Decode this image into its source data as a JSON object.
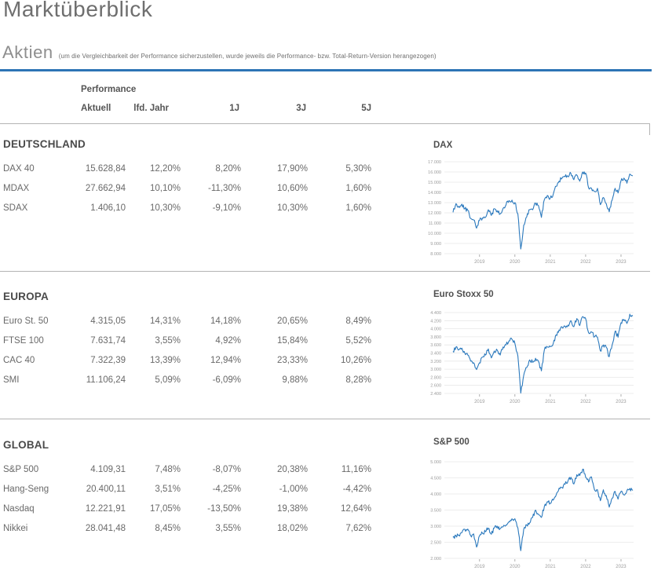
{
  "page": {
    "title": "Marktüberblick"
  },
  "section": {
    "title": "Aktien",
    "note": "(um die Vergleichbarkeit der Performance sicherzustellen, wurde jeweils die Performance- bzw. Total-Return-Version herangezogen)"
  },
  "table": {
    "group_header": "Performance",
    "columns": [
      "Aktuell",
      "lfd. Jahr",
      "1J",
      "3J",
      "5J"
    ],
    "groups": [
      {
        "name": "DEUTSCHLAND",
        "rows": [
          {
            "label": "DAX 40",
            "values": [
              "15.628,84",
              "12,20%",
              "8,20%",
              "17,90%",
              "5,30%"
            ]
          },
          {
            "label": "MDAX",
            "values": [
              "27.662,94",
              "10,10%",
              "-11,30%",
              "10,60%",
              "1,60%"
            ]
          },
          {
            "label": "SDAX",
            "values": [
              "1.406,10",
              "10,30%",
              "-9,10%",
              "10,30%",
              "1,60%"
            ]
          }
        ]
      },
      {
        "name": "EUROPA",
        "rows": [
          {
            "label": "Euro St. 50",
            "values": [
              "4.315,05",
              "14,31%",
              "14,18%",
              "20,65%",
              "8,49%"
            ]
          },
          {
            "label": "FTSE 100",
            "values": [
              "7.631,74",
              "3,55%",
              "4,92%",
              "15,84%",
              "5,52%"
            ]
          },
          {
            "label": "CAC 40",
            "values": [
              "7.322,39",
              "13,39%",
              "12,94%",
              "23,33%",
              "10,26%"
            ]
          },
          {
            "label": "SMI",
            "values": [
              "11.106,24",
              "5,09%",
              "-6,09%",
              "9,88%",
              "8,28%"
            ]
          }
        ]
      },
      {
        "name": "GLOBAL",
        "rows": [
          {
            "label": "S&P 500",
            "values": [
              "4.109,31",
              "7,48%",
              "-8,07%",
              "20,38%",
              "11,16%"
            ]
          },
          {
            "label": "Hang-Seng",
            "values": [
              "20.400,11",
              "3,51%",
              "-4,25%",
              "-1,00%",
              "-4,42%"
            ]
          },
          {
            "label": "Nasdaq",
            "values": [
              "12.221,91",
              "17,05%",
              "-13,50%",
              "19,38%",
              "12,64%"
            ]
          },
          {
            "label": "Nikkei",
            "values": [
              "28.041,48",
              "8,45%",
              "3,55%",
              "18,02%",
              "7,62%"
            ]
          }
        ]
      }
    ]
  },
  "colors": {
    "accent_blue": "#2d74b5",
    "chart_line": "#2b79bd",
    "grid_line": "#e7e7e7",
    "axis_label": "#9b9b9b",
    "rule_gray": "#b3b3b3",
    "text_dark": "#4a4a4a",
    "text_medium": "#696969",
    "text_light": "#8e8e8e"
  },
  "chart_data": [
    {
      "type": "line",
      "title": "DAX",
      "x_start": "2018-04",
      "x_end": "2023-05",
      "x_ticks": [
        "2019",
        "2020",
        "2021",
        "2022",
        "2023"
      ],
      "y_min": 8000,
      "y_max": 17000,
      "y_step": 1000,
      "y_tick_labels": [
        "8.000",
        "9.000",
        "10.000",
        "11.000",
        "12.000",
        "13.000",
        "14.000",
        "15.000",
        "16.000",
        "17.000"
      ],
      "grid": true,
      "legend": "none",
      "series": [
        {
          "name": "DAX",
          "values": [
            12050,
            12900,
            12650,
            12850,
            12400,
            12250,
            11450,
            11300,
            10500,
            11250,
            11500,
            11550,
            12300,
            11750,
            12400,
            12200,
            11900,
            12450,
            12800,
            13200,
            13250,
            13000,
            11900,
            8450,
            10800,
            11600,
            12300,
            12300,
            12950,
            12700,
            11550,
            13300,
            13700,
            13450,
            13800,
            14600,
            15100,
            15400,
            15550,
            15550,
            15850,
            15250,
            15700,
            15100,
            16000,
            15900,
            14450,
            14400,
            14100,
            14400,
            12800,
            13500,
            12900,
            12100,
            13250,
            14400,
            13950,
            15150,
            15400,
            14900,
            15800,
            15630
          ]
        }
      ]
    },
    {
      "type": "line",
      "title": "Euro Stoxx 50",
      "x_start": "2018-04",
      "x_end": "2023-05",
      "x_ticks": [
        "2019",
        "2020",
        "2021",
        "2022",
        "2023"
      ],
      "y_min": 2400,
      "y_max": 4400,
      "y_step": 200,
      "y_tick_labels": [
        "2.400",
        "2.600",
        "2.800",
        "3.000",
        "3.200",
        "3.400",
        "3.600",
        "3.800",
        "4.000",
        "4.200",
        "4.400"
      ],
      "grid": true,
      "legend": "none",
      "series": [
        {
          "name": "Euro Stoxx 50",
          "values": [
            3440,
            3550,
            3480,
            3520,
            3400,
            3350,
            3200,
            3160,
            2990,
            3160,
            3300,
            3350,
            3500,
            3280,
            3450,
            3470,
            3350,
            3550,
            3600,
            3700,
            3740,
            3640,
            3330,
            2410,
            2850,
            3040,
            3230,
            3170,
            3270,
            3190,
            2960,
            3480,
            3550,
            3560,
            3630,
            3850,
            3970,
            4040,
            4060,
            4090,
            4200,
            4050,
            4250,
            4080,
            4300,
            4250,
            3900,
            3920,
            3800,
            3790,
            3450,
            3600,
            3540,
            3310,
            3600,
            3940,
            3790,
            4150,
            4230,
            4130,
            4360,
            4315
          ]
        }
      ]
    },
    {
      "type": "line",
      "title": "S&P 500",
      "x_start": "2018-04",
      "x_end": "2023-05",
      "x_ticks": [
        "2019",
        "2020",
        "2021",
        "2022",
        "2023"
      ],
      "y_min": 2000,
      "y_max": 5000,
      "y_step": 500,
      "y_tick_labels": [
        "2.000",
        "2.500",
        "3.000",
        "3.500",
        "4.000",
        "4.500",
        "5.000"
      ],
      "grid": true,
      "legend": "none",
      "series": [
        {
          "name": "S&P 500",
          "values": [
            2650,
            2700,
            2720,
            2800,
            2900,
            2910,
            2710,
            2760,
            2350,
            2700,
            2780,
            2830,
            2940,
            2750,
            2940,
            3000,
            2930,
            2980,
            3040,
            3140,
            3230,
            3230,
            2950,
            2240,
            2910,
            3040,
            3100,
            3270,
            3500,
            3360,
            3270,
            3620,
            3760,
            3710,
            3810,
            3970,
            4180,
            4200,
            4300,
            4400,
            4520,
            4310,
            4600,
            4570,
            4770,
            4520,
            4370,
            4530,
            4130,
            4130,
            3790,
            4130,
            3950,
            3590,
            3870,
            4080,
            3840,
            4080,
            3970,
            4100,
            4170,
            4109
          ]
        }
      ]
    }
  ]
}
